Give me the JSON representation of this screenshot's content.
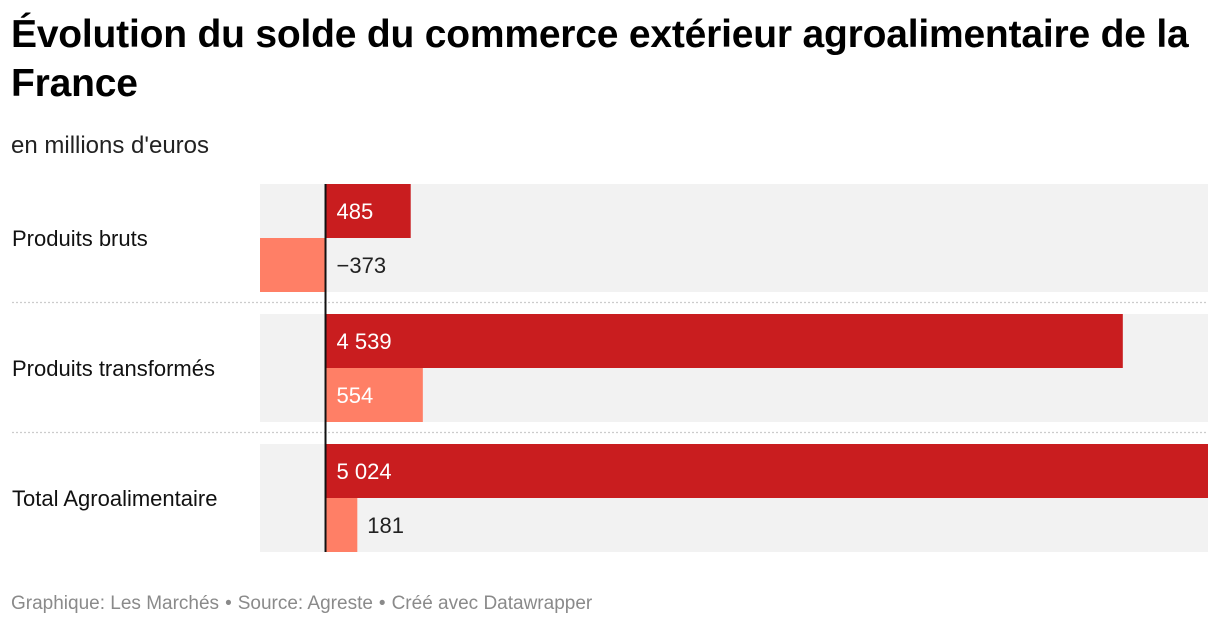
{
  "title": "Évolution du solde du commerce extérieur agroalimentaire de la France",
  "subtitle": "en millions d'euros",
  "footer": {
    "credit": "Graphique: Les Marchés",
    "source": "Source: Agreste",
    "tool": "Créé avec Datawrapper",
    "separator": "•"
  },
  "colors": {
    "series1": "#c91d1f",
    "series2": "#ff7f66",
    "row_background": "#f2f2f2",
    "axis": "#111111",
    "separator": "#cccccc"
  },
  "chart_data": {
    "type": "bar",
    "orientation": "horizontal",
    "categories": [
      "Produits bruts",
      "Produits transformés",
      "Total Agroalimentaire"
    ],
    "series": [
      {
        "values": [
          485,
          4539,
          5024
        ],
        "labels": [
          "485",
          "4 539",
          "5 024"
        ]
      },
      {
        "values": [
          -373,
          554,
          181
        ],
        "labels": [
          "−373",
          "554",
          "181"
        ]
      }
    ],
    "xlim": [
      -373,
      5024
    ],
    "grid": false,
    "legend": "none"
  }
}
